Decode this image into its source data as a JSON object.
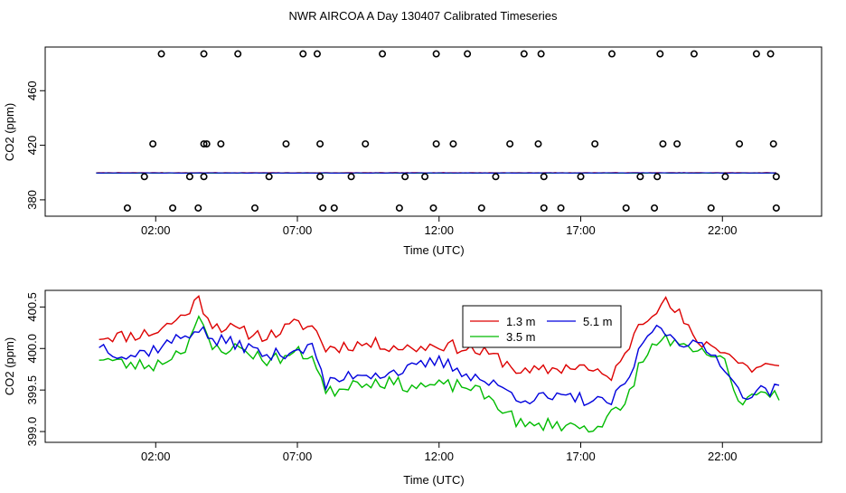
{
  "title": "NWR AIRCOA A  Day 130407  Calibrated Timeseries",
  "chart_data": [
    {
      "type": "scatter",
      "name": "top-panel",
      "xlabel": "Time (UTC)",
      "ylabel": "CO2 (ppm)",
      "xlim": [
        -1.9,
        25.5
      ],
      "ylim": [
        368,
        492
      ],
      "xticks": [
        2,
        7,
        12,
        17,
        22
      ],
      "xtick_labels": [
        "02:00",
        "07:00",
        "12:00",
        "17:00",
        "22:00"
      ],
      "yticks": [
        380,
        420,
        460
      ],
      "ytick_labels": [
        "380",
        "420",
        "460"
      ],
      "outlier_points": {
        "x": [
          1.0,
          1.6,
          1.9,
          2.2,
          2.6,
          3.2,
          3.5,
          3.7,
          3.7,
          3.7,
          3.8,
          4.3,
          4.9,
          5.5,
          6.0,
          6.6,
          7.2,
          7.7,
          7.8,
          7.8,
          7.9,
          8.3,
          8.9,
          9.4,
          10.0,
          10.6,
          10.8,
          11.5,
          11.8,
          11.9,
          11.9,
          12.5,
          13.0,
          13.5,
          14.0,
          14.5,
          15.0,
          15.5,
          15.6,
          15.7,
          15.7,
          16.3,
          17.0,
          17.5,
          18.1,
          18.6,
          19.1,
          19.6,
          19.7,
          19.8,
          19.9,
          20.4,
          21.0,
          21.6,
          22.1,
          22.6,
          23.2,
          23.7,
          23.8,
          23.9,
          23.9
        ],
        "y": [
          374,
          397,
          421,
          487,
          374,
          397,
          374,
          397,
          421,
          487,
          421,
          421,
          487,
          374,
          397,
          421,
          487,
          487,
          421,
          397,
          374,
          374,
          397,
          421,
          487,
          374,
          397,
          397,
          374,
          421,
          487,
          421,
          487,
          374,
          397,
          421,
          487,
          421,
          487,
          397,
          374,
          374,
          397,
          421,
          487,
          374,
          397,
          374,
          397,
          487,
          421,
          421,
          487,
          374,
          397,
          421,
          487,
          487,
          421,
          397,
          374
        ]
      },
      "series": [
        {
          "name": "1.3 m",
          "color": "#dd0000",
          "base": 399.9,
          "scale": 0.1
        },
        {
          "name": "3.5 m",
          "color": "#00bb00",
          "base": 399.6,
          "scale": 0.1
        },
        {
          "name": "5.1 m",
          "color": "#0000dd",
          "base": 399.7,
          "scale": 0.1
        }
      ]
    },
    {
      "type": "line",
      "name": "bottom-panel",
      "xlabel": "Time (UTC)",
      "ylabel": "CO2 (ppm)",
      "xlim": [
        -1.9,
        25.5
      ],
      "ylim": [
        398.87,
        400.7
      ],
      "xticks": [
        2,
        7,
        12,
        17,
        22
      ],
      "xtick_labels": [
        "02:00",
        "07:00",
        "12:00",
        "17:00",
        "22:00"
      ],
      "yticks": [
        399.0,
        399.5,
        400.0,
        400.5
      ],
      "ytick_labels": [
        "399.0",
        "399.5",
        "400.0",
        "400.5"
      ],
      "legend": {
        "position": "top-right",
        "entries": [
          {
            "label": "1.3 m",
            "color": "#dd0000"
          },
          {
            "label": "5.1 m",
            "color": "#0000dd"
          },
          {
            "label": "3.5 m",
            "color": "#00bb00"
          }
        ]
      },
      "series": [
        {
          "name": "1.3 m",
          "color": "#dd0000",
          "x": [
            0,
            1,
            2,
            3,
            3.5,
            4,
            5,
            6,
            7,
            7.6,
            8,
            9,
            10,
            11,
            12,
            13,
            14,
            15,
            16,
            17,
            17.5,
            18,
            18.5,
            19,
            19.5,
            20,
            20.5,
            21,
            22,
            22.5,
            23,
            23.5,
            24
          ],
          "y": [
            400.15,
            400.15,
            400.2,
            400.4,
            400.6,
            400.3,
            400.2,
            400.15,
            400.3,
            400.25,
            400.0,
            400.05,
            400.05,
            400.0,
            400.05,
            400.0,
            399.9,
            399.7,
            399.75,
            399.8,
            399.7,
            399.65,
            399.85,
            400.3,
            400.45,
            400.55,
            400.4,
            400.1,
            400.0,
            399.85,
            399.75,
            399.8,
            399.75
          ]
        },
        {
          "name": "3.5 m",
          "color": "#00bb00",
          "x": [
            0,
            1,
            2,
            3,
            3.5,
            4,
            5,
            6,
            7,
            7.6,
            8,
            9,
            10,
            11,
            12,
            13,
            14,
            15,
            16,
            17,
            17.5,
            18,
            18.5,
            19,
            19.5,
            20,
            20.5,
            21,
            22,
            22.5,
            23,
            23.5,
            24
          ],
          "y": [
            399.9,
            399.8,
            399.8,
            400.0,
            400.35,
            400.0,
            400.0,
            399.85,
            399.95,
            399.9,
            399.45,
            399.6,
            399.6,
            399.55,
            399.55,
            399.55,
            399.35,
            399.05,
            399.1,
            399.05,
            399.05,
            399.2,
            399.25,
            399.75,
            400.0,
            400.15,
            400.0,
            399.95,
            399.9,
            399.35,
            399.45,
            399.5,
            399.45
          ]
        },
        {
          "name": "5.1 m",
          "color": "#0000dd",
          "x": [
            0,
            1,
            2,
            3,
            3.5,
            4,
            5,
            6,
            7,
            7.6,
            8,
            9,
            10,
            11,
            12,
            13,
            14,
            15,
            16,
            17,
            17.5,
            18,
            18.5,
            19,
            19.5,
            20,
            20.5,
            21,
            22,
            22.5,
            23,
            23.5,
            24
          ],
          "y": [
            400.05,
            399.9,
            400.0,
            400.15,
            400.25,
            400.1,
            400.05,
            399.9,
            400.0,
            400.0,
            399.55,
            399.7,
            399.7,
            399.75,
            399.85,
            399.7,
            399.55,
            399.4,
            399.4,
            399.4,
            399.35,
            399.35,
            399.5,
            399.9,
            400.25,
            400.2,
            400.1,
            400.05,
            399.85,
            399.5,
            399.45,
            399.5,
            399.5
          ]
        }
      ]
    }
  ]
}
